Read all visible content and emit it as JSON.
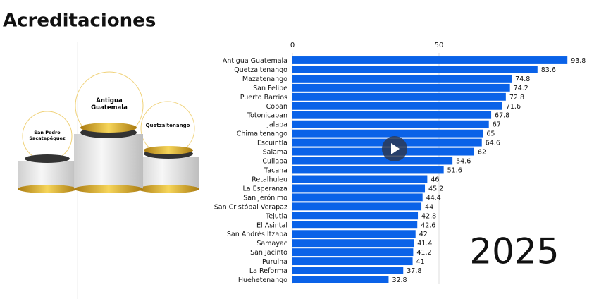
{
  "title": "Acreditaciones",
  "podium": [
    "Antigua Guatemala",
    "San Pedro Sacatepéquez",
    "Quetzaltenango"
  ],
  "year": "2025",
  "chart_data": {
    "type": "bar",
    "orientation": "horizontal",
    "categories": [
      "Antigua Guatemala",
      "Quetzaltenango",
      "Mazatenango",
      "San Felipe",
      "Puerto Barrios",
      "Coban",
      "Totonicapan",
      "Jalapa",
      "Chimaltenango",
      "Escuintla",
      "Salama",
      "Cuilapa",
      "Tacana",
      "Retalhuleu",
      "La Esperanza",
      "San Jerónimo",
      "San Cristóbal Verapaz",
      "Tejutla",
      "El Asintal",
      "San Andrés Itzapa",
      "Samayac",
      "San Jacinto",
      "Purulha",
      "La Reforma",
      "Huehetenango"
    ],
    "values": [
      93.8,
      83.6,
      74.8,
      74.2,
      72.8,
      71.6,
      67.8,
      67,
      65,
      64.6,
      62,
      54.6,
      51.6,
      46,
      45.2,
      44.4,
      44,
      42.8,
      42.6,
      42,
      41.4,
      41.2,
      41,
      37.8,
      32.8
    ],
    "color": "#0a62e8",
    "xlim": [
      0,
      100
    ],
    "xticks": [
      0,
      50
    ],
    "grid": true
  }
}
